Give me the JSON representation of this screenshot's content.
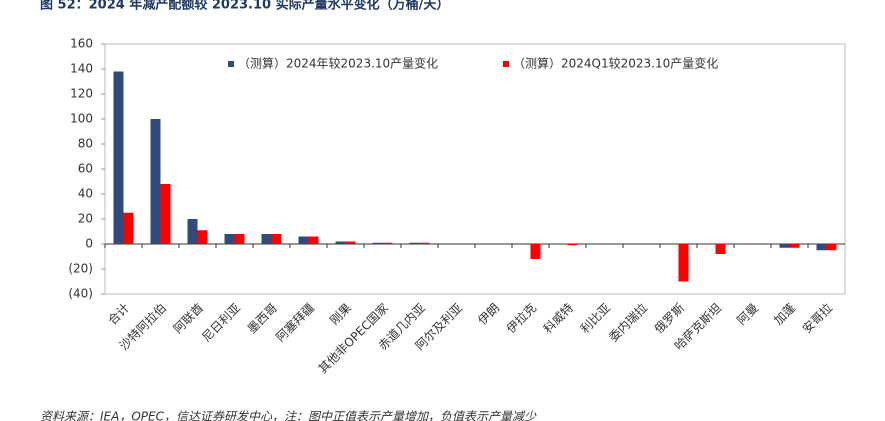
{
  "chart_data": {
    "type": "bar",
    "title": "图 52：2024 年减产配额较 2023.10 实际产量水平变化（万桶/天）",
    "source": "资料来源：IEA，OPEC，信达证券研发中心，注：图中正值表示产量增加，负值表示产量减少",
    "categories": [
      "合计",
      "沙特阿拉伯",
      "阿联酋",
      "尼日利亚",
      "墨西哥",
      "阿塞拜疆",
      "刚果",
      "其他非OPEC国家",
      "赤道几内亚",
      "阿尔及利亚",
      "伊朗",
      "伊拉克",
      "科威特",
      "利比亚",
      "委内瑞拉",
      "俄罗斯",
      "哈萨克斯坦",
      "阿曼",
      "加蓬",
      "安哥拉"
    ],
    "series": [
      {
        "name": "（测算）2024年较2023.10产量变化",
        "color": "#2f4b7c",
        "values": [
          138,
          100,
          20,
          8,
          8,
          6,
          2,
          1,
          1,
          0,
          0,
          0,
          0,
          0,
          0,
          0,
          0,
          0,
          -3,
          -5
        ]
      },
      {
        "name": "（测算）2024Q1较2023.10产量变化",
        "color": "#ff0000",
        "values": [
          25,
          48,
          11,
          8,
          8,
          6,
          2,
          1,
          1,
          0,
          0,
          -12,
          -1,
          0,
          0,
          -30,
          -8,
          0,
          -3,
          -5
        ]
      }
    ],
    "ylim": [
      -40,
      160
    ],
    "yticks": [
      {
        "value": -40,
        "label": "(40)"
      },
      {
        "value": -20,
        "label": "(20)"
      },
      0,
      20,
      40,
      60,
      80,
      100,
      120,
      140,
      160
    ],
    "legend": "top"
  }
}
